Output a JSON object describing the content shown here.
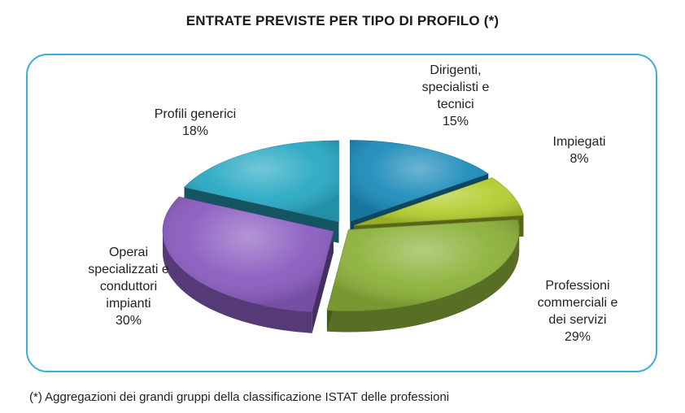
{
  "chart_data": {
    "type": "pie",
    "title": "ENTRATE PREVISTE PER TIPO DI PROFILO (*)",
    "slices": [
      {
        "label": "Dirigenti,\nspecialisti e\ntecnici",
        "value": 15,
        "value_label": "15%",
        "color": "#1d8cbb"
      },
      {
        "label": "Impiegati",
        "value": 8,
        "value_label": "8%",
        "color": "#b3cd2f"
      },
      {
        "label": "Professioni\ncommerciali e\ndei servizi",
        "value": 29,
        "value_label": "29%",
        "color": "#8cb23a"
      },
      {
        "label": "Operai\nspecializzati e\nconduttori\nimpianti",
        "value": 30,
        "value_label": "30%",
        "color": "#8a5cc0"
      },
      {
        "label": "Profili generici",
        "value": 18,
        "value_label": "18%",
        "color": "#29a9c4"
      }
    ],
    "style": "3d-exploded"
  },
  "footnote": "(*) Aggregazioni dei grandi gruppi della classificazione ISTAT delle professioni"
}
